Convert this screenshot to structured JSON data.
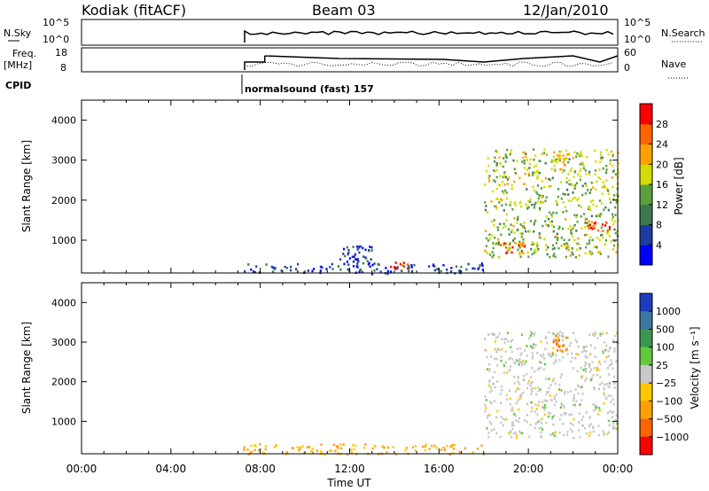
{
  "header": {
    "station": "Kodiak (fitACF)",
    "beam": "Beam 03",
    "date": "12/Jan/2010"
  },
  "panels": {
    "nsky_label": "N.Sky",
    "nsky_ticks": [
      "10^5",
      "10^0"
    ],
    "nsearch_label": "N.Search",
    "nsearch_ticks": [
      "10^5",
      "10^0"
    ],
    "freq_label_1": "Freq.",
    "freq_label_2": "[MHz]",
    "freq_ticks": [
      "18",
      "8"
    ],
    "nave_label": "Nave",
    "nave_ticks": [
      "60",
      "0"
    ],
    "cpid_label": "CPID",
    "cpid_text": "normalsound (fast) 157"
  },
  "chart_data": [
    {
      "type": "heatmap",
      "title": "Power",
      "ylabel": "Slant Range [km]",
      "xlabel": "Time UT",
      "ylim": [
        180,
        4500
      ],
      "xlim": [
        0,
        24
      ],
      "yticks": [
        "1000",
        "2000",
        "3000",
        "4000"
      ],
      "xticks": [
        "00:00",
        "04:00",
        "08:00",
        "12:00",
        "16:00",
        "20:00",
        "00:00"
      ],
      "colorbar": {
        "label": "Power [dB]",
        "ticks": [
          "4",
          "8",
          "12",
          "16",
          "20",
          "24",
          "28"
        ],
        "colors": [
          "#0000ff",
          "#1e3ca0",
          "#3c7850",
          "#5aa03c",
          "#d2dc00",
          "#ffa000",
          "#ff6400",
          "#ff0000"
        ]
      },
      "regions": [
        {
          "t0": 7.2,
          "t1": 18.0,
          "r0": 180,
          "r1": 450,
          "value": 6
        },
        {
          "t0": 13.6,
          "t1": 14.6,
          "r0": 300,
          "r1": 480,
          "value": 28
        },
        {
          "t0": 11.5,
          "t1": 13.0,
          "r0": 450,
          "r1": 900,
          "value": 6
        },
        {
          "t0": 18.0,
          "t1": 24.0,
          "r0": 600,
          "r1": 3300,
          "value": 16
        },
        {
          "t0": 18.7,
          "t1": 19.8,
          "r0": 700,
          "r1": 1000,
          "value": 26
        },
        {
          "t0": 22.6,
          "t1": 23.6,
          "r0": 1250,
          "r1": 1550,
          "value": 28
        },
        {
          "t0": 21.0,
          "t1": 21.7,
          "r0": 2700,
          "r1": 3200,
          "value": 20
        }
      ]
    },
    {
      "type": "heatmap",
      "title": "Velocity",
      "ylabel": "Slant Range [km]",
      "xlabel": "Time UT",
      "ylim": [
        180,
        4500
      ],
      "xlim": [
        0,
        24
      ],
      "yticks": [
        "1000",
        "2000",
        "3000",
        "4000"
      ],
      "xticks": [
        "00:00",
        "04:00",
        "08:00",
        "12:00",
        "16:00",
        "20:00",
        "00:00"
      ],
      "colorbar": {
        "label": "Velocity [m s⁻¹]",
        "ticks": [
          "1000",
          "500",
          "100",
          "25",
          "−25",
          "−100",
          "−500",
          "−1000"
        ],
        "colors": [
          "#1e3cbe",
          "#3c78a0",
          "#3c9650",
          "#64c83c",
          "#c8c8c8",
          "#ffc800",
          "#ffa000",
          "#ff6400",
          "#ff0000"
        ]
      },
      "regions": [
        {
          "t0": 7.2,
          "t1": 18.0,
          "r0": 180,
          "r1": 450,
          "value": -100
        },
        {
          "t0": 18.0,
          "t1": 24.0,
          "r0": 600,
          "r1": 3300,
          "value": 0
        },
        {
          "t0": 21.0,
          "t1": 21.7,
          "r0": 2700,
          "r1": 3200,
          "value": -500
        }
      ]
    }
  ],
  "footer": {
    "xlabel": "Time UT"
  }
}
